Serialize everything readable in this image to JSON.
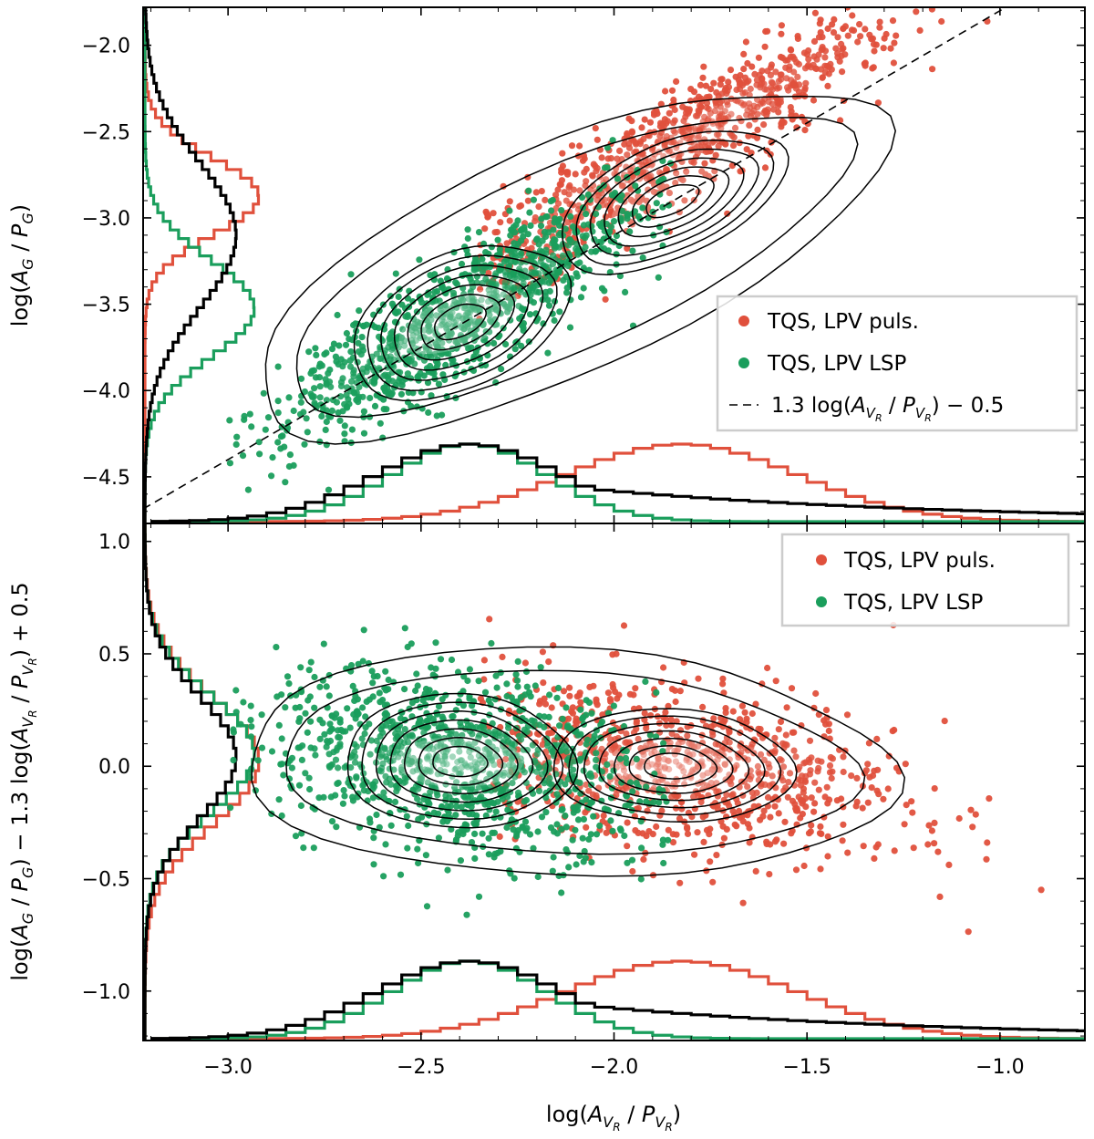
{
  "chart_data": [
    {
      "type": "scatter",
      "panel": "top",
      "xlabel": "log(A_VR / P_VR)",
      "ylabel": "log(A_G / P_G)",
      "ylabel_parts": {
        "main": "log(",
        "a": "A",
        "a_sub": "G",
        "slash": " / ",
        "p": "P",
        "p_sub": "G",
        "close": ")"
      },
      "xlim": [
        -3.22,
        -0.78
      ],
      "ylim": [
        -4.77,
        -1.78
      ],
      "yticks": [
        -4.5,
        -4.0,
        -3.5,
        -3.0,
        -2.5,
        -2.0
      ],
      "ytick_labels": [
        "−4.5",
        "−4.0",
        "−3.5",
        "−3.0",
        "−2.5",
        "−2.0"
      ],
      "series": [
        {
          "name": "TQS, LPV puls.",
          "color": "#e0503c",
          "center": [
            -1.85,
            -2.9
          ],
          "spread": [
            0.3,
            0.22
          ],
          "extent_x": [
            -2.3,
            -0.85
          ],
          "count": 900
        },
        {
          "name": "TQS, LPV LSP",
          "color": "#1a9e5c",
          "center": [
            -2.4,
            -3.6
          ],
          "spread": [
            0.25,
            0.25
          ],
          "extent_x": [
            -2.95,
            -1.9
          ],
          "count": 1100
        }
      ],
      "reference_line": {
        "label": "1.3 log(A_VR / P_VR) − 0.5",
        "slope": 1.3,
        "intercept": -0.5,
        "style": "dashed"
      },
      "legend": {
        "position": "right",
        "entries": [
          {
            "label": "TQS, LPV puls.",
            "marker": "dot",
            "color": "#e0503c"
          },
          {
            "label": "TQS, LPV LSP",
            "marker": "dot",
            "color": "#1a9e5c"
          },
          {
            "label": "1.3 log(A_VR / P_VR) − 0.5",
            "marker": "dash",
            "color": "#000000"
          }
        ],
        "line_label_parts": {
          "pre": "1.3 log(",
          "a": "A",
          "a_sub": "V",
          "a_subsub": "R",
          "slash": " / ",
          "p": "P",
          "p_sub": "V",
          "p_subsub": "R",
          "post": ") − 0.5"
        }
      },
      "contours": {
        "color": "#000000",
        "levels": 8
      },
      "marginal_histograms": {
        "x": {
          "red_peak": -1.85,
          "green_peak": -2.4
        },
        "y": {
          "red_peak": -2.9,
          "green_peak": -3.55
        }
      }
    },
    {
      "type": "scatter",
      "panel": "bottom",
      "xlabel": "log(A_VR / P_VR)",
      "ylabel": "log(A_G / P_G) − 1.3 log(A_VR / P_VR) + 0.5",
      "xlim": [
        -3.22,
        -0.78
      ],
      "ylim": [
        -1.22,
        1.08
      ],
      "xticks": [
        -3.0,
        -2.5,
        -2.0,
        -1.5,
        -1.0
      ],
      "xtick_labels": [
        "−3.0",
        "−2.5",
        "−2.0",
        "−1.5",
        "−1.0"
      ],
      "yticks": [
        -1.0,
        -0.5,
        0.0,
        0.5,
        1.0
      ],
      "ytick_labels": [
        "−1.0",
        "−0.5",
        "0.0",
        "0.5",
        "1.0"
      ],
      "series": [
        {
          "name": "TQS, LPV puls.",
          "color": "#e0503c",
          "center": [
            -1.85,
            0.0
          ],
          "spread": [
            0.3,
            0.18
          ],
          "extent_x": [
            -2.3,
            -0.85
          ],
          "count": 900
        },
        {
          "name": "TQS, LPV LSP",
          "color": "#1a9e5c",
          "center": [
            -2.4,
            0.02
          ],
          "spread": [
            0.25,
            0.2
          ],
          "extent_x": [
            -2.95,
            -1.9
          ],
          "count": 1100
        }
      ],
      "legend": {
        "position": "top-right",
        "entries": [
          {
            "label": "TQS, LPV puls.",
            "marker": "dot",
            "color": "#e0503c"
          },
          {
            "label": "TQS, LPV LSP",
            "marker": "dot",
            "color": "#1a9e5c"
          }
        ]
      },
      "contours": {
        "color": "#000000",
        "levels": 8
      },
      "marginal_histograms": {
        "x": {
          "red_peak": -1.85,
          "green_peak": -2.4
        },
        "y": {
          "red_peak": 0.0,
          "green_peak": 0.03
        }
      }
    }
  ],
  "ylabel_bottom_parts": {
    "p1": "log(",
    "a": "A",
    "a_sub": "G",
    "s1": " / ",
    "p": "P",
    "p_sub": "G",
    "p2": ") − 1.3 log(",
    "a2": "A",
    "a2_sub": "V",
    "a2_subsub": "R",
    "s2": " / ",
    "pp": "P",
    "pp_sub": "V",
    "pp_subsub": "R",
    "p3": ") + 0.5"
  },
  "xlabel_parts": {
    "p1": "log(",
    "a": "A",
    "a_sub": "V",
    "a_subsub": "R",
    "s": " / ",
    "p": "P",
    "p_sub": "V",
    "p_subsub": "R",
    "p2": ")"
  },
  "colors": {
    "red": "#e0503c",
    "green": "#1a9e5c",
    "contour": "#000000",
    "hist_black": "#000000"
  }
}
